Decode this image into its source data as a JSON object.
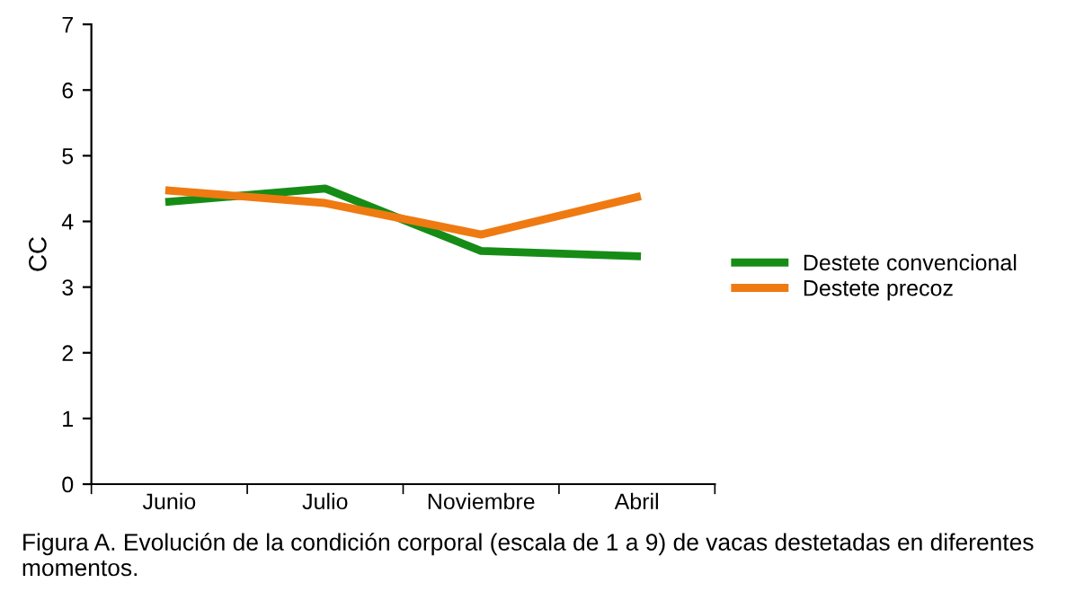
{
  "chart_data": {
    "type": "line",
    "ylabel": "CC",
    "categories": [
      "Junio",
      "Julio",
      "Noviembre",
      "Abril"
    ],
    "series": [
      {
        "name": "Destete convencional",
        "color": "#168c17",
        "values": [
          4.3,
          4.5,
          3.55,
          3.47
        ]
      },
      {
        "name": "Destete precoz",
        "color": "#ef7a12",
        "values": [
          4.47,
          4.28,
          3.8,
          4.37
        ]
      }
    ],
    "ylim": [
      0,
      7
    ],
    "yticks": [
      0,
      1,
      2,
      3,
      4,
      5,
      6,
      7
    ],
    "grid": false,
    "legend": "right",
    "marker": "none",
    "line_style": "solid",
    "annotations": [
      "Figura A. Evolución de la condición corporal (escala de 1 a 9) de vacas destetadas en diferentes momentos."
    ]
  }
}
